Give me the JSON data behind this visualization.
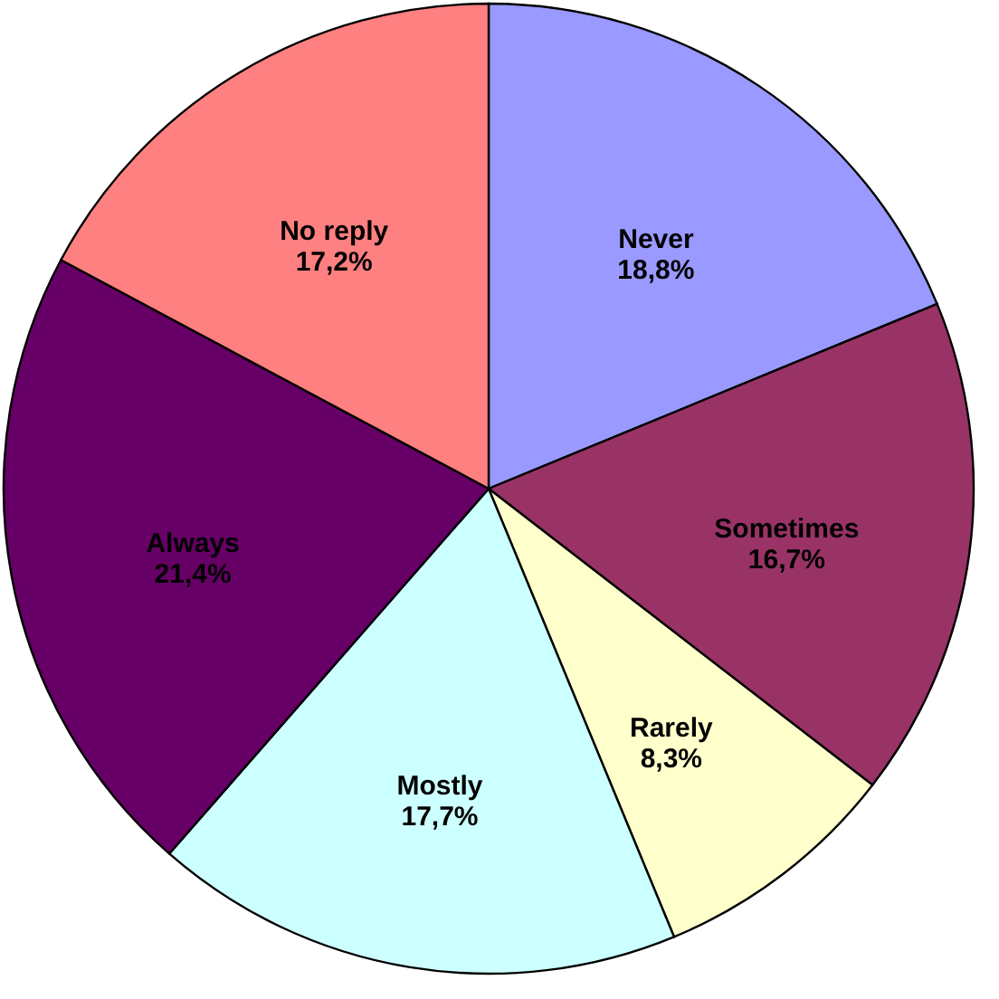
{
  "chart_data": {
    "type": "pie",
    "categories": [
      "Never",
      "Sometimes",
      "Rarely",
      "Mostly",
      "Always",
      "No reply"
    ],
    "values": [
      18.8,
      16.7,
      8.3,
      17.7,
      21.4,
      17.2
    ],
    "colors": [
      "#9999ff",
      "#993366",
      "#ffffcc",
      "#ccffff",
      "#660066",
      "#ff8080"
    ],
    "value_labels": [
      "18,8%",
      "16,7%",
      "8,3%",
      "17,7%",
      "21,4%",
      "17,2%"
    ]
  }
}
